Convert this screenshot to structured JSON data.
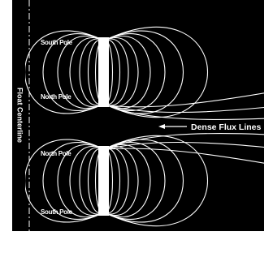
{
  "centerline": "Float Centerline",
  "top_magnet": {
    "upper_pole": "South Pole",
    "lower_pole": "North Pole"
  },
  "bottom_magnet": {
    "upper_pole": "North Pole",
    "lower_pole": "South Pole"
  },
  "callout": "Dense Flux Lines"
}
